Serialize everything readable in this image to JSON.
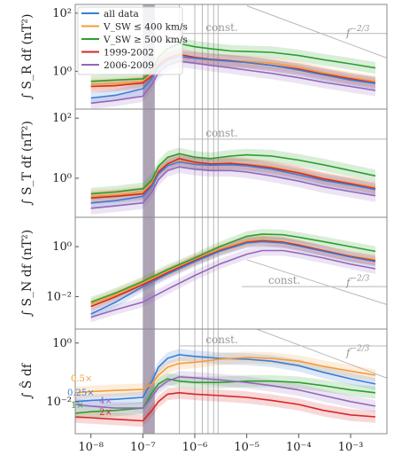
{
  "chart_data": {
    "type": "line",
    "x_scale": "log",
    "xlim": [
      5e-09,
      0.005
    ],
    "x_ticks": [
      1e-08,
      1e-07,
      1e-06,
      1e-05,
      0.0001,
      0.001
    ],
    "x_tick_labels": [
      "10⁻⁸",
      "10⁻⁷",
      "10⁻⁶",
      "10⁻⁵",
      "10⁻⁴",
      "10⁻³"
    ],
    "vertical_lines": [
      5e-07,
      1e-06,
      1.4e-06,
      1.8e-06,
      2.3e-06,
      2.8e-06
    ],
    "shaded_band": [
      1e-07,
      1.7e-07
    ],
    "colors": {
      "all": "#3b7dd8",
      "slow": "#f39c3a",
      "fast": "#2ca02c",
      "p1": "#d62728",
      "p2": "#9467bd",
      "ref": "#b8b8b8",
      "frame": "#8a8a8a",
      "band": "#6b5a7a"
    },
    "legend": {
      "placement": "top-left of top panel",
      "entries": [
        {
          "key": "all",
          "label": "all data"
        },
        {
          "key": "slow",
          "label": "V_SW ≤ 400 km/s"
        },
        {
          "key": "fast",
          "label": "V_SW ≥ 500 km/s"
        },
        {
          "key": "p1",
          "label": "1999-2002"
        },
        {
          "key": "p2",
          "label": "2006-2009"
        }
      ]
    },
    "panels": [
      {
        "ylabel": "∫ S_R df (nT²)",
        "y_scale": "log",
        "ylim": [
          0.05,
          200
        ],
        "y_ticks": [
          1,
          100
        ],
        "y_tick_labels": [
          "10⁰",
          "10²"
        ],
        "ref_const": {
          "label": "const.",
          "y": 20,
          "from": 5e-07
        },
        "ref_power": {
          "label": "f⁻²ᐟ³",
          "from": 1e-05,
          "y_start": 180,
          "to": 0.005
        },
        "series": [
          {
            "key": "fast",
            "x": [
              1e-08,
              3e-08,
              1e-07,
              1.5e-07,
              2e-07,
              3e-07,
              5e-07,
              1e-06,
              2e-06,
              5e-06,
              1e-05,
              3e-05,
              0.0001,
              0.0003,
              0.001,
              0.003
            ],
            "y": [
              0.45,
              0.5,
              0.55,
              1.0,
              3.0,
              6.0,
              9.0,
              7.0,
              6.0,
              5.0,
              4.8,
              4.5,
              3.5,
              2.5,
              1.8,
              1.3
            ]
          },
          {
            "key": "slow",
            "x": [
              1e-08,
              3e-08,
              1e-07,
              1.5e-07,
              2e-07,
              3e-07,
              5e-07,
              1e-06,
              2e-06,
              5e-06,
              1e-05,
              3e-05,
              0.0001,
              0.0003,
              0.001,
              0.003
            ],
            "y": [
              0.35,
              0.38,
              0.45,
              0.8,
              1.8,
              3.0,
              3.4,
              2.8,
              2.4,
              2.3,
              2.2,
              1.9,
              1.4,
              0.9,
              0.6,
              0.45
            ]
          },
          {
            "key": "p1",
            "x": [
              1e-08,
              3e-08,
              1e-07,
              1.5e-07,
              2e-07,
              3e-07,
              5e-07,
              1e-06,
              2e-06,
              5e-06,
              1e-05,
              3e-05,
              0.0001,
              0.0003,
              0.001,
              0.003
            ],
            "y": [
              0.3,
              0.32,
              0.4,
              0.7,
              1.6,
              2.8,
              3.8,
              3.0,
              2.6,
              2.3,
              2.0,
              1.6,
              1.2,
              0.8,
              0.55,
              0.4
            ]
          },
          {
            "key": "all",
            "x": [
              1e-08,
              3e-08,
              1e-07,
              1.5e-07,
              2e-07,
              3e-07,
              5e-07,
              1e-06,
              2e-06,
              5e-06,
              1e-05,
              3e-05,
              0.0001,
              0.0003,
              0.001,
              0.003
            ],
            "y": [
              0.12,
              0.15,
              0.25,
              0.6,
              1.4,
              2.5,
              3.2,
              2.8,
              2.5,
              2.2,
              2.0,
              1.6,
              1.1,
              0.75,
              0.5,
              0.38
            ]
          },
          {
            "key": "p2",
            "x": [
              1e-08,
              3e-08,
              1e-07,
              1.5e-07,
              2e-07,
              3e-07,
              5e-07,
              1e-06,
              2e-06,
              5e-06,
              1e-05,
              3e-05,
              0.0001,
              0.0003,
              0.001,
              0.003
            ],
            "y": [
              0.08,
              0.1,
              0.14,
              0.35,
              0.9,
              1.6,
              2.2,
              1.9,
              1.6,
              1.3,
              1.1,
              0.85,
              0.6,
              0.42,
              0.3,
              0.22
            ]
          }
        ]
      },
      {
        "ylabel": "∫ S_T df (nT²)",
        "y_scale": "log",
        "ylim": [
          0.05,
          200
        ],
        "y_ticks": [
          1,
          100
        ],
        "y_tick_labels": [
          "10⁰",
          "10²"
        ],
        "ref_const": {
          "label": "const.",
          "y": 20,
          "from": 5e-07
        },
        "ref_power": null,
        "series": [
          {
            "key": "fast",
            "x": [
              1e-08,
              3e-08,
              1e-07,
              1.5e-07,
              2e-07,
              3e-07,
              5e-07,
              1e-06,
              2e-06,
              5e-06,
              1e-05,
              3e-05,
              0.0001,
              0.0003,
              0.001,
              0.003
            ],
            "y": [
              0.3,
              0.35,
              0.45,
              0.9,
              2.5,
              5.0,
              6.5,
              5.0,
              4.5,
              5.5,
              6.0,
              5.5,
              4.0,
              2.8,
              1.8,
              1.2
            ]
          },
          {
            "key": "slow",
            "x": [
              1e-08,
              3e-08,
              1e-07,
              1.5e-07,
              2e-07,
              3e-07,
              5e-07,
              1e-06,
              2e-06,
              5e-06,
              1e-05,
              3e-05,
              0.0001,
              0.0003,
              0.001,
              0.003
            ],
            "y": [
              0.25,
              0.28,
              0.35,
              0.7,
              1.8,
              3.2,
              4.0,
              3.2,
              3.0,
              3.2,
              3.0,
              2.4,
              1.6,
              1.0,
              0.7,
              0.5
            ]
          },
          {
            "key": "p1",
            "x": [
              1e-08,
              3e-08,
              1e-07,
              1.5e-07,
              2e-07,
              3e-07,
              5e-07,
              1e-06,
              2e-06,
              5e-06,
              1e-05,
              3e-05,
              0.0001,
              0.0003,
              0.001,
              0.003
            ],
            "y": [
              0.22,
              0.25,
              0.3,
              0.6,
              1.6,
              3.0,
              4.5,
              3.4,
              3.0,
              3.1,
              2.8,
              2.2,
              1.5,
              0.95,
              0.65,
              0.45
            ]
          },
          {
            "key": "all",
            "x": [
              1e-08,
              3e-08,
              1e-07,
              1.5e-07,
              2e-07,
              3e-07,
              5e-07,
              1e-06,
              2e-06,
              5e-06,
              1e-05,
              3e-05,
              0.0001,
              0.0003,
              0.001,
              0.003
            ],
            "y": [
              0.15,
              0.18,
              0.25,
              0.55,
              1.4,
              2.6,
              3.5,
              2.9,
              2.7,
              2.8,
              2.6,
              2.0,
              1.3,
              0.85,
              0.6,
              0.42
            ]
          },
          {
            "key": "p2",
            "x": [
              1e-08,
              3e-08,
              1e-07,
              1.5e-07,
              2e-07,
              3e-07,
              5e-07,
              1e-06,
              2e-06,
              5e-06,
              1e-05,
              3e-05,
              0.0001,
              0.0003,
              0.001,
              0.003
            ],
            "y": [
              0.1,
              0.12,
              0.15,
              0.35,
              0.9,
              1.8,
              2.4,
              2.0,
              1.8,
              1.8,
              1.6,
              1.2,
              0.8,
              0.52,
              0.36,
              0.26
            ]
          }
        ]
      },
      {
        "ylabel": "∫ S_N df (nT²)",
        "y_scale": "log",
        "ylim": [
          0.0005,
          15
        ],
        "y_ticks": [
          0.01,
          1
        ],
        "y_tick_labels": [
          "10⁻²",
          "10⁰"
        ],
        "ref_const": {
          "label": "const.",
          "y": 0.025,
          "from": 8e-06
        },
        "ref_power": {
          "label": "f⁻²ᐟ³",
          "from": 1e-05,
          "y_start": 0.3,
          "to": 0.005
        },
        "series": [
          {
            "key": "fast",
            "x": [
              1e-08,
              3e-08,
              1e-07,
              3e-07,
              1e-06,
              3e-06,
              1e-05,
              2e-05,
              5e-05,
              0.0001,
              0.0003,
              0.001,
              0.003
            ],
            "y": [
              0.006,
              0.014,
              0.04,
              0.12,
              0.35,
              1.0,
              2.6,
              3.2,
              3.0,
              2.4,
              1.6,
              1.0,
              0.65
            ]
          },
          {
            "key": "slow",
            "x": [
              1e-08,
              3e-08,
              1e-07,
              3e-07,
              1e-06,
              3e-06,
              1e-05,
              2e-05,
              5e-05,
              0.0001,
              0.0003,
              0.001,
              0.003
            ],
            "y": [
              0.005,
              0.012,
              0.035,
              0.1,
              0.3,
              0.8,
              1.7,
              1.9,
              1.6,
              1.2,
              0.7,
              0.42,
              0.3
            ]
          },
          {
            "key": "p1",
            "x": [
              1e-08,
              3e-08,
              1e-07,
              3e-07,
              1e-06,
              3e-06,
              1e-05,
              2e-05,
              5e-05,
              0.0001,
              0.0003,
              0.001,
              0.003
            ],
            "y": [
              0.004,
              0.01,
              0.03,
              0.09,
              0.28,
              0.7,
              1.5,
              1.7,
              1.5,
              1.15,
              0.7,
              0.4,
              0.27
            ]
          },
          {
            "key": "all",
            "x": [
              1e-08,
              3e-08,
              1e-07,
              3e-07,
              1e-06,
              3e-06,
              1e-05,
              2e-05,
              5e-05,
              0.0001,
              0.0003,
              0.001,
              0.003
            ],
            "y": [
              0.002,
              0.006,
              0.025,
              0.08,
              0.25,
              0.65,
              1.4,
              1.6,
              1.4,
              1.05,
              0.65,
              0.38,
              0.25
            ]
          },
          {
            "key": "p2",
            "x": [
              1e-08,
              3e-08,
              1e-07,
              3e-07,
              1e-06,
              3e-06,
              1e-05,
              2e-05,
              5e-05,
              0.0001,
              0.0003,
              0.001,
              0.003
            ],
            "y": [
              0.0015,
              0.003,
              0.006,
              0.02,
              0.07,
              0.2,
              0.5,
              0.7,
              0.7,
              0.55,
              0.35,
              0.2,
              0.13
            ]
          }
        ]
      },
      {
        "ylabel": "∫ Ŝ df",
        "y_scale": "log",
        "ylim": [
          0.0008,
          3
        ],
        "y_ticks": [
          0.01,
          1
        ],
        "y_tick_labels": [
          "10⁻²",
          "10⁰"
        ],
        "ref_const": {
          "label": "const.",
          "y": 0.8,
          "from": 5e-07
        },
        "ref_power": {
          "label": "f⁻²ᐟ³",
          "from": 1e-05,
          "y_start": 4,
          "to": 0.005
        },
        "factors": [
          {
            "key": "slow",
            "label": "0.5×"
          },
          {
            "key": "all",
            "label": "0.25×"
          },
          {
            "key": "fast",
            "label": "1×"
          },
          {
            "key": "p2",
            "label": "4×"
          },
          {
            "key": "p1",
            "label": "2×"
          }
        ],
        "series": [
          {
            "key": "all",
            "x": [
              5e-09,
              1e-08,
              3e-08,
              1e-07,
              1.5e-07,
              2e-07,
              3e-07,
              5e-07,
              1e-06,
              3e-06,
              1e-05,
              3e-05,
              0.0001,
              0.0003,
              0.001,
              0.003
            ],
            "y": [
              0.01,
              0.011,
              0.012,
              0.014,
              0.05,
              0.15,
              0.3,
              0.4,
              0.35,
              0.3,
              0.28,
              0.24,
              0.17,
              0.1,
              0.06,
              0.04
            ]
          },
          {
            "key": "slow",
            "x": [
              5e-09,
              1e-08,
              3e-08,
              1e-07,
              1.5e-07,
              2e-07,
              3e-07,
              5e-07,
              1e-06,
              3e-06,
              1e-05,
              3e-05,
              0.0001,
              0.0003,
              0.001,
              0.003
            ],
            "y": [
              0.02,
              0.022,
              0.024,
              0.026,
              0.04,
              0.08,
              0.15,
              0.2,
              0.22,
              0.28,
              0.32,
              0.3,
              0.24,
              0.16,
              0.11,
              0.08
            ]
          },
          {
            "key": "fast",
            "x": [
              5e-09,
              1e-08,
              3e-08,
              1e-07,
              1.5e-07,
              2e-07,
              3e-07,
              5e-07,
              1e-06,
              3e-06,
              1e-05,
              3e-05,
              0.0001,
              0.0003,
              0.001,
              0.003
            ],
            "y": [
              0.004,
              0.0045,
              0.005,
              0.006,
              0.02,
              0.04,
              0.06,
              0.05,
              0.045,
              0.045,
              0.05,
              0.05,
              0.045,
              0.035,
              0.025,
              0.02
            ]
          },
          {
            "key": "p2",
            "x": [
              5e-09,
              1e-08,
              3e-08,
              1e-07,
              1.5e-07,
              2e-07,
              3e-07,
              5e-07,
              1e-06,
              3e-06,
              1e-05,
              3e-05,
              0.0001,
              0.0003,
              0.001,
              0.003
            ],
            "y": [
              0.008,
              0.007,
              0.006,
              0.006,
              0.015,
              0.03,
              0.05,
              0.07,
              0.065,
              0.055,
              0.045,
              0.035,
              0.025,
              0.016,
              0.01,
              0.007
            ]
          },
          {
            "key": "p1",
            "x": [
              5e-09,
              1e-08,
              3e-08,
              1e-07,
              1.5e-07,
              2e-07,
              3e-07,
              5e-07,
              1e-06,
              3e-06,
              1e-05,
              3e-05,
              0.0001,
              0.0003,
              0.001,
              0.003
            ],
            "y": [
              0.003,
              0.0028,
              0.0025,
              0.0022,
              0.005,
              0.01,
              0.018,
              0.02,
              0.018,
              0.016,
              0.014,
              0.011,
              0.008,
              0.005,
              0.0035,
              0.003
            ]
          }
        ]
      }
    ]
  }
}
